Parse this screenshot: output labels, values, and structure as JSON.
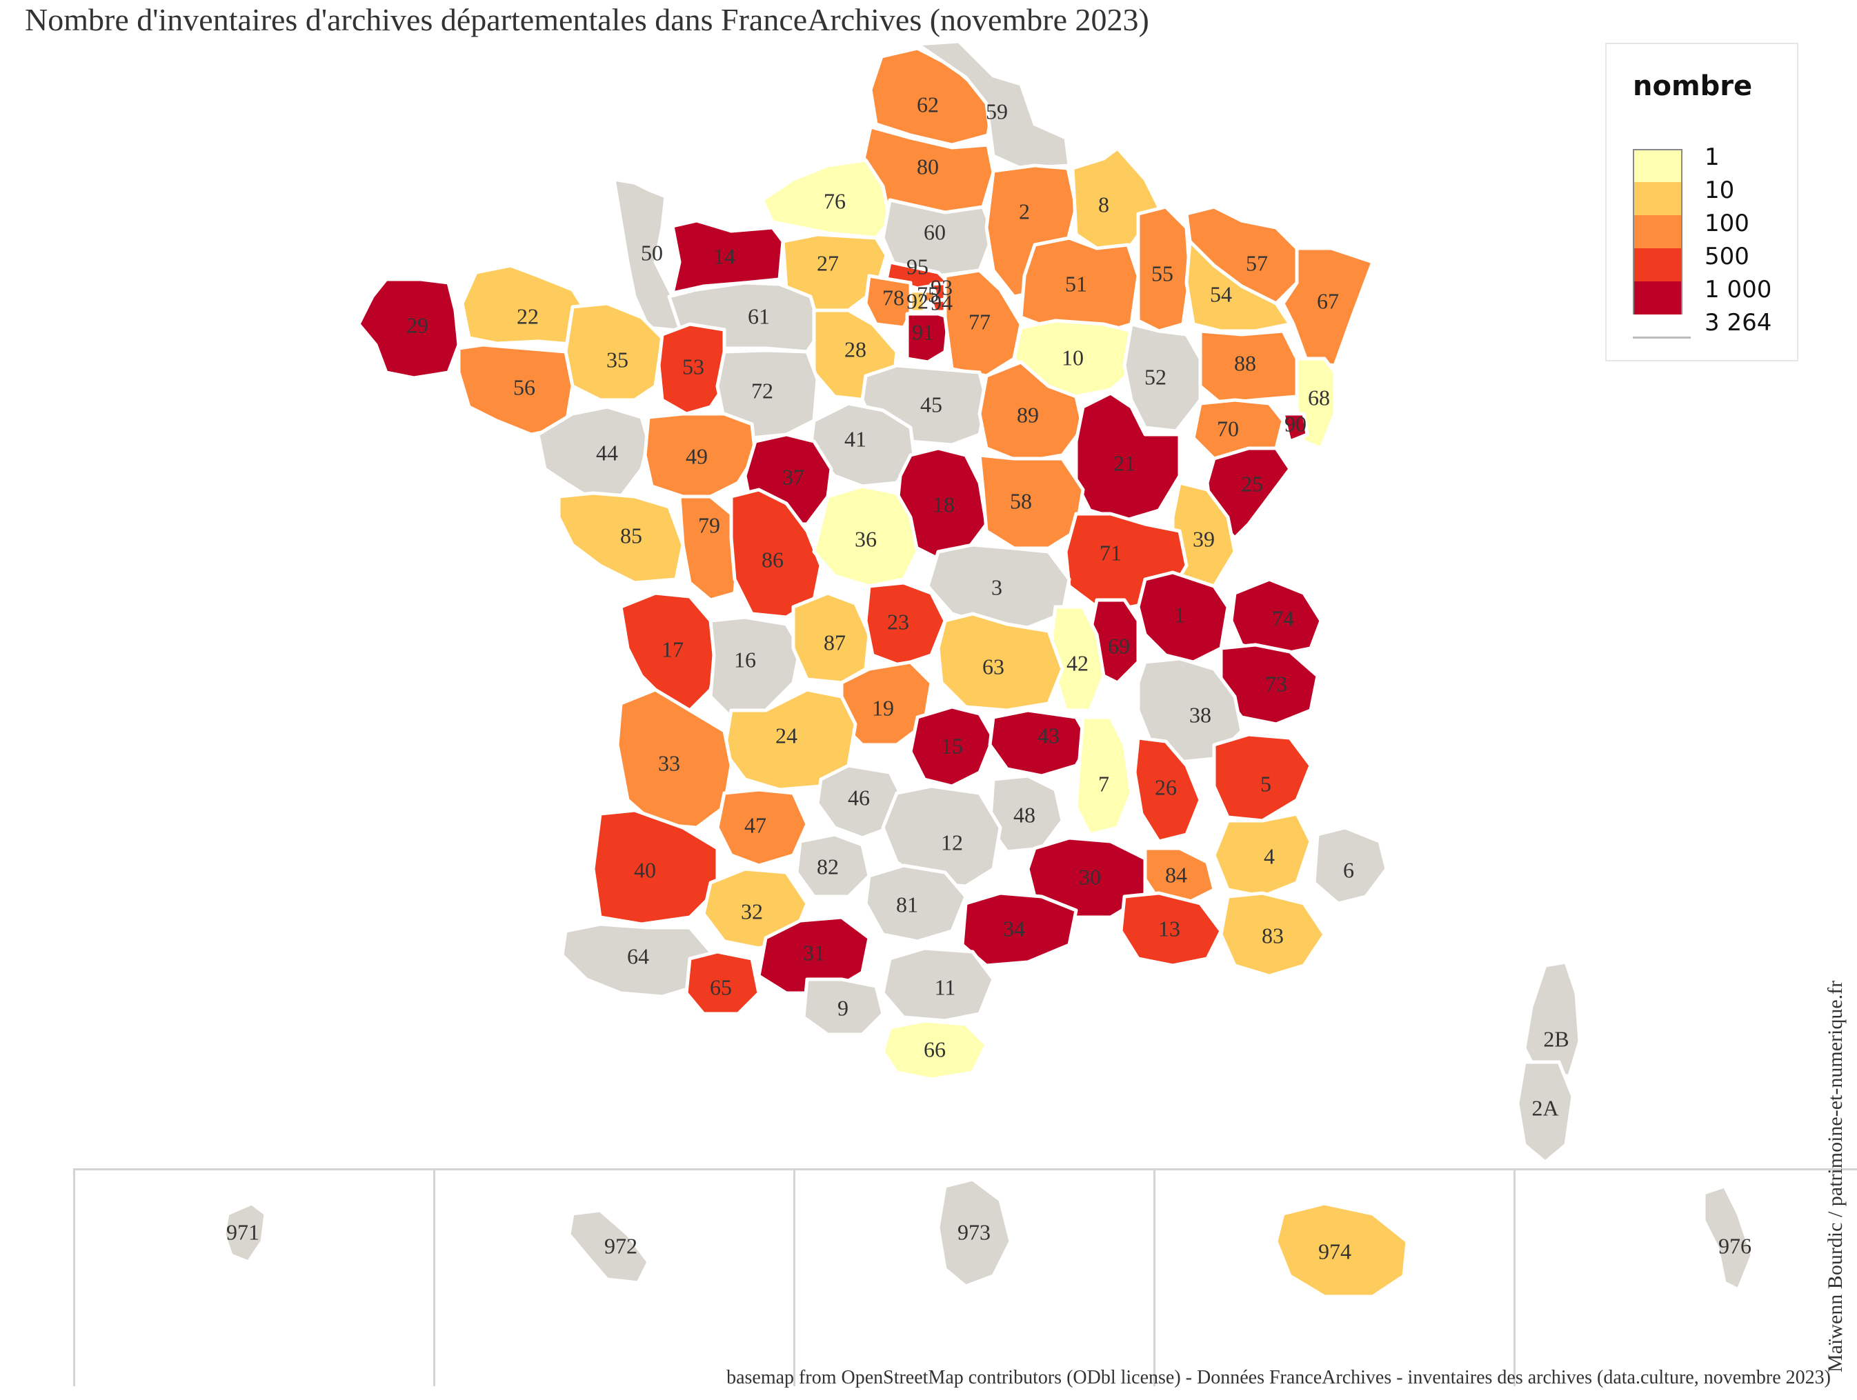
{
  "title": "Nombre d'inventaires d'archives départementales dans FranceArchives (novembre 2023)",
  "legend": {
    "title": "nombre",
    "entries": [
      {
        "label": "1",
        "color": "#ffffb2"
      },
      {
        "label": "10",
        "color": "#fecc5c"
      },
      {
        "label": "100",
        "color": "#fd8d3c"
      },
      {
        "label": "500",
        "color": "#f03b20"
      },
      {
        "label": "1 000",
        "color": "#bd0026"
      },
      {
        "label": "3 264",
        "color": "#bd0026"
      }
    ],
    "no_data_color": "#d9d5cf"
  },
  "credit": "Maïwenn Bourdic / patrimoine-et-numerique.fr",
  "source": "basemap from OpenStreetMap contributors (ODbl license) - Données FranceArchives - inventaires des archives (data.culture, novembre 2023)",
  "departments": [
    {
      "code": "62",
      "class": "100"
    },
    {
      "code": "59",
      "class": "na"
    },
    {
      "code": "80",
      "class": "100"
    },
    {
      "code": "76",
      "class": "1"
    },
    {
      "code": "60",
      "class": "na"
    },
    {
      "code": "2",
      "class": "100"
    },
    {
      "code": "8",
      "class": "10"
    },
    {
      "code": "50",
      "class": "na"
    },
    {
      "code": "14",
      "class": "1000"
    },
    {
      "code": "27",
      "class": "10"
    },
    {
      "code": "95",
      "class": "500"
    },
    {
      "code": "93",
      "class": "500"
    },
    {
      "code": "75",
      "class": "100"
    },
    {
      "code": "94",
      "class": "500"
    },
    {
      "code": "92",
      "class": "10"
    },
    {
      "code": "78",
      "class": "100"
    },
    {
      "code": "91",
      "class": "1000"
    },
    {
      "code": "77",
      "class": "100"
    },
    {
      "code": "51",
      "class": "100"
    },
    {
      "code": "55",
      "class": "100"
    },
    {
      "code": "57",
      "class": "100"
    },
    {
      "code": "67",
      "class": "100"
    },
    {
      "code": "54",
      "class": "10"
    },
    {
      "code": "29",
      "class": "1000"
    },
    {
      "code": "22",
      "class": "10"
    },
    {
      "code": "35",
      "class": "10"
    },
    {
      "code": "61",
      "class": "na"
    },
    {
      "code": "53",
      "class": "500"
    },
    {
      "code": "28",
      "class": "10"
    },
    {
      "code": "72",
      "class": "na"
    },
    {
      "code": "10",
      "class": "1"
    },
    {
      "code": "52",
      "class": "na"
    },
    {
      "code": "88",
      "class": "100"
    },
    {
      "code": "68",
      "class": "1"
    },
    {
      "code": "56",
      "class": "100"
    },
    {
      "code": "45",
      "class": "na"
    },
    {
      "code": "89",
      "class": "100"
    },
    {
      "code": "44",
      "class": "na"
    },
    {
      "code": "49",
      "class": "100"
    },
    {
      "code": "41",
      "class": "na"
    },
    {
      "code": "70",
      "class": "100"
    },
    {
      "code": "90",
      "class": "1000"
    },
    {
      "code": "21",
      "class": "1000"
    },
    {
      "code": "37",
      "class": "1000"
    },
    {
      "code": "18",
      "class": "1000"
    },
    {
      "code": "25",
      "class": "1000"
    },
    {
      "code": "58",
      "class": "100"
    },
    {
      "code": "85",
      "class": "10"
    },
    {
      "code": "79",
      "class": "100"
    },
    {
      "code": "86",
      "class": "500"
    },
    {
      "code": "36",
      "class": "1"
    },
    {
      "code": "39",
      "class": "10"
    },
    {
      "code": "71",
      "class": "500"
    },
    {
      "code": "3",
      "class": "na"
    },
    {
      "code": "1",
      "class": "1000"
    },
    {
      "code": "74",
      "class": "1000"
    },
    {
      "code": "17",
      "class": "500"
    },
    {
      "code": "16",
      "class": "na"
    },
    {
      "code": "87",
      "class": "10"
    },
    {
      "code": "23",
      "class": "500"
    },
    {
      "code": "69",
      "class": "1000"
    },
    {
      "code": "42",
      "class": "1"
    },
    {
      "code": "63",
      "class": "10"
    },
    {
      "code": "73",
      "class": "1000"
    },
    {
      "code": "38",
      "class": "na"
    },
    {
      "code": "19",
      "class": "100"
    },
    {
      "code": "24",
      "class": "10"
    },
    {
      "code": "15",
      "class": "1000"
    },
    {
      "code": "43",
      "class": "1000"
    },
    {
      "code": "33",
      "class": "100"
    },
    {
      "code": "7",
      "class": "1"
    },
    {
      "code": "26",
      "class": "500"
    },
    {
      "code": "5",
      "class": "500"
    },
    {
      "code": "46",
      "class": "na"
    },
    {
      "code": "48",
      "class": "na"
    },
    {
      "code": "47",
      "class": "100"
    },
    {
      "code": "12",
      "class": "na"
    },
    {
      "code": "4",
      "class": "10"
    },
    {
      "code": "6",
      "class": "na"
    },
    {
      "code": "40",
      "class": "500"
    },
    {
      "code": "82",
      "class": "na"
    },
    {
      "code": "30",
      "class": "1000"
    },
    {
      "code": "84",
      "class": "100"
    },
    {
      "code": "32",
      "class": "10"
    },
    {
      "code": "81",
      "class": "na"
    },
    {
      "code": "13",
      "class": "500"
    },
    {
      "code": "83",
      "class": "10"
    },
    {
      "code": "34",
      "class": "1000"
    },
    {
      "code": "64",
      "class": "na"
    },
    {
      "code": "31",
      "class": "1000"
    },
    {
      "code": "65",
      "class": "500"
    },
    {
      "code": "11",
      "class": "na"
    },
    {
      "code": "9",
      "class": "na"
    },
    {
      "code": "66",
      "class": "1"
    },
    {
      "code": "2B",
      "class": "na"
    },
    {
      "code": "2A",
      "class": "na"
    }
  ],
  "overseas": [
    {
      "code": "971",
      "class": "na"
    },
    {
      "code": "972",
      "class": "na"
    },
    {
      "code": "973",
      "class": "na"
    },
    {
      "code": "974",
      "class": "10"
    },
    {
      "code": "976",
      "class": "na"
    }
  ]
}
